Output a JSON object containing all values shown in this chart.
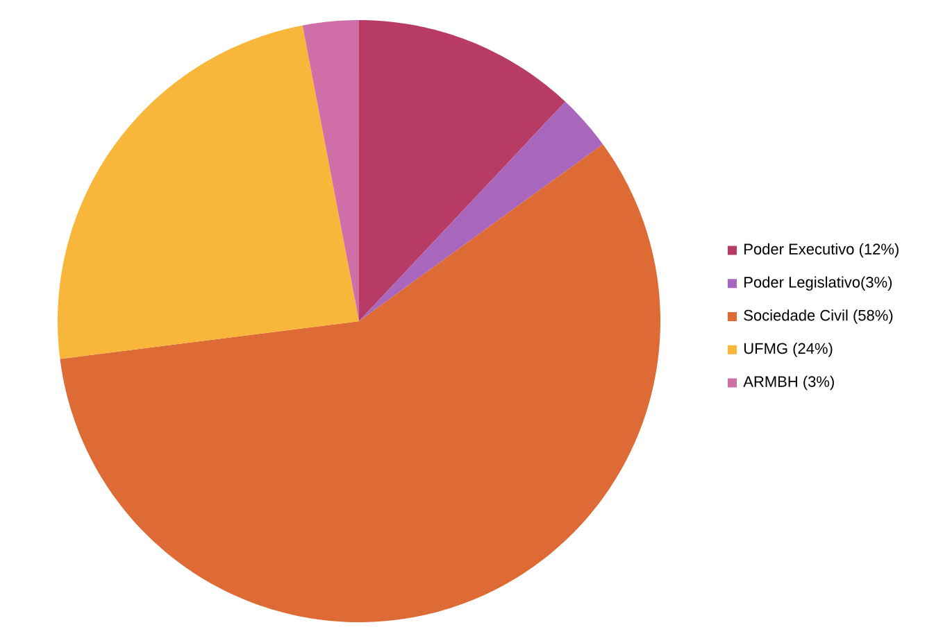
{
  "chart_data": {
    "type": "pie",
    "categories": [
      "Poder Executivo (12%)",
      "Poder Legislativo(3%)",
      "Sociedade Civil (58%)",
      "UFMG (24%)",
      "ARMBH (3%)"
    ],
    "values": [
      12,
      3,
      58,
      24,
      3
    ],
    "colors": [
      "#b83b66",
      "#a866bd",
      "#de6b35",
      "#f8b63a",
      "#d06ea7"
    ],
    "legend": "right"
  }
}
